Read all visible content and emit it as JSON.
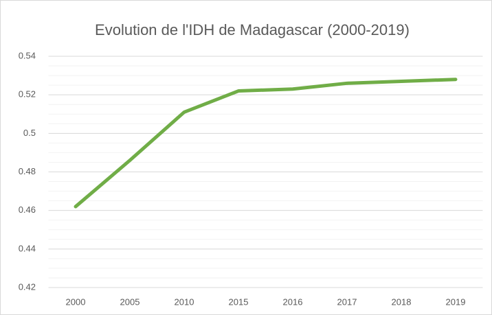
{
  "chart_data": {
    "type": "line",
    "title": "Evolution de l'IDH de Madagascar (2000-2019)",
    "categories": [
      "2000",
      "2005",
      "2010",
      "2015",
      "2016",
      "2017",
      "2018",
      "2019"
    ],
    "values": [
      0.462,
      0.486,
      0.511,
      0.522,
      0.523,
      0.526,
      0.527,
      0.528
    ],
    "color": "#70ad47",
    "ylim": [
      0.42,
      0.54
    ],
    "yticks": [
      0.42,
      0.44,
      0.46,
      0.48,
      0.5,
      0.52,
      0.54
    ],
    "grid": true,
    "minor_grid_step": 0.005
  }
}
